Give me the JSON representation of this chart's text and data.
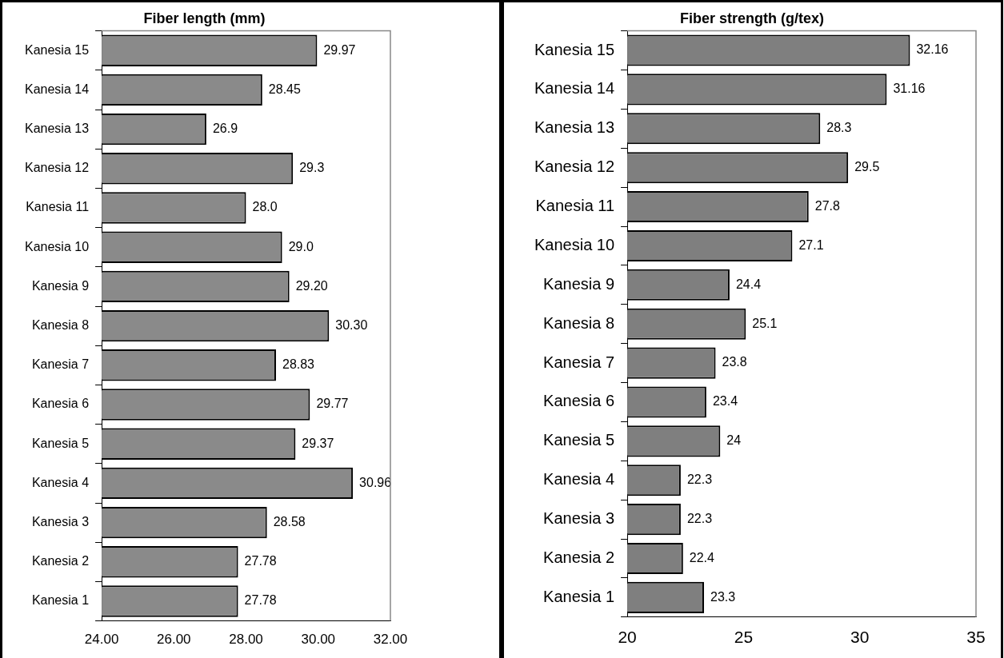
{
  "chart_data": [
    {
      "type": "bar",
      "orientation": "horizontal",
      "title": "Fiber length (mm)",
      "categories": [
        "Kanesia 15",
        "Kanesia 14",
        "Kanesia 13",
        "Kanesia 12",
        "Kanesia 11",
        "Kanesia 10",
        "Kanesia 9",
        "Kanesia 8",
        "Kanesia 7",
        "Kanesia 6",
        "Kanesia 5",
        "Kanesia 4",
        "Kanesia 3",
        "Kanesia 2",
        "Kanesia 1"
      ],
      "values": [
        29.97,
        28.45,
        26.9,
        29.3,
        28.0,
        29.0,
        29.2,
        30.3,
        28.83,
        29.77,
        29.37,
        30.96,
        28.58,
        27.78,
        27.78
      ],
      "value_labels": [
        "29.97",
        "28.45",
        "26.9",
        "29.3",
        "28.0",
        "29.0",
        "29.20",
        "30.30",
        "28.83",
        "29.77",
        "29.37",
        "30.96",
        "28.58",
        "27.78",
        "27.78"
      ],
      "color": "#8a8a8a",
      "xlim": [
        24,
        32
      ],
      "xticks": [
        {
          "value": 24,
          "label": "24.00"
        },
        {
          "value": 26,
          "label": "26.00"
        },
        {
          "value": 28,
          "label": "28.00"
        },
        {
          "value": 30,
          "label": "30.00"
        },
        {
          "value": 32,
          "label": "32.00"
        }
      ],
      "grid": false,
      "legend": false
    },
    {
      "type": "bar",
      "orientation": "horizontal",
      "title": "Fiber strength (g/tex)",
      "categories": [
        "Kanesia 15",
        "Kanesia 14",
        "Kanesia 13",
        "Kanesia 12",
        "Kanesia 11",
        "Kanesia 10",
        "Kanesia 9",
        "Kanesia 8",
        "Kanesia 7",
        "Kanesia 6",
        "Kanesia 5",
        "Kanesia 4",
        "Kanesia 3",
        "Kanesia 2",
        "Kanesia 1"
      ],
      "values": [
        32.16,
        31.16,
        28.3,
        29.5,
        27.8,
        27.1,
        24.4,
        25.1,
        23.8,
        23.4,
        24,
        22.3,
        22.3,
        22.4,
        23.3
      ],
      "data_labels": true,
      "color": "#7f7f7f",
      "xlim": [
        20,
        35
      ],
      "xticks": [
        20,
        25,
        30,
        35
      ],
      "grid": false,
      "legend": false
    }
  ]
}
